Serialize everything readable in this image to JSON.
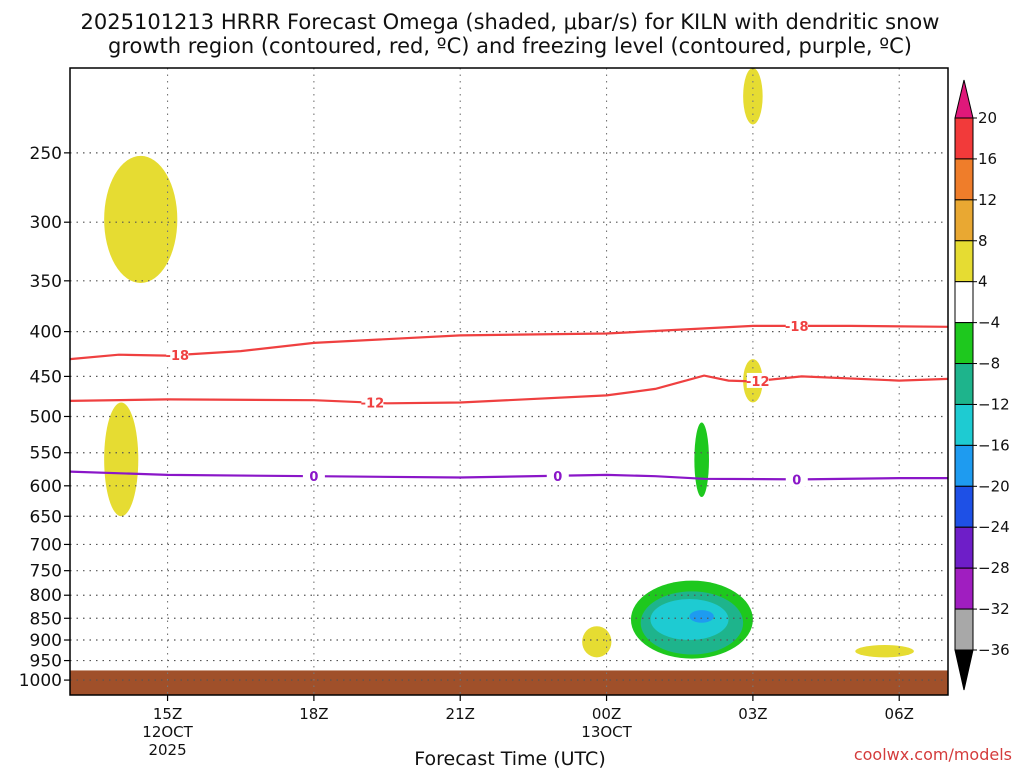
{
  "chart_data": {
    "type": "heatmap",
    "title_line1": "2025101213 HRRR Forecast Omega (shaded, μbar/s) for KILN with dendritic snow",
    "title_line2": "growth region (contoured, red, ºC) and freezing level (contoured, purple, ºC)",
    "xlabel": "Forecast Time (UTC)",
    "ylabel": "",
    "credit": "coolwx.com/models",
    "y_axis": {
      "scale": "pressure",
      "units": "hPa",
      "ticks": [
        250,
        300,
        350,
        400,
        450,
        500,
        550,
        600,
        650,
        700,
        750,
        800,
        850,
        900,
        950,
        1000
      ],
      "range": [
        1000,
        200
      ]
    },
    "x_axis": {
      "ticks": [
        {
          "hour": 15,
          "label": "15Z",
          "sub": [
            "12OCT",
            "2025"
          ]
        },
        {
          "hour": 18,
          "label": "18Z",
          "sub": []
        },
        {
          "hour": 21,
          "label": "21Z",
          "sub": []
        },
        {
          "hour": 24,
          "label": "00Z",
          "sub": [
            "13OCT"
          ]
        },
        {
          "hour": 27,
          "label": "03Z",
          "sub": []
        },
        {
          "hour": 30,
          "label": "06Z",
          "sub": []
        }
      ],
      "range": [
        13,
        31
      ]
    },
    "grid": true,
    "colorbar": {
      "labels": [
        "20",
        "16",
        "12",
        "8",
        "4",
        "−4",
        "−8",
        "−12",
        "−16",
        "−20",
        "−24",
        "−28",
        "−32",
        "−36"
      ],
      "colors": [
        "#e0187a",
        "#f23a3a",
        "#ef7d2a",
        "#e9a832",
        "#e6dc32",
        "#ffffff",
        "#1ec81e",
        "#1eb48c",
        "#1ecbd2",
        "#1e9bf0",
        "#1e50e6",
        "#6e1ec8",
        "#a01ec0",
        "#a8a8a8",
        "#000000"
      ]
    },
    "contours": {
      "dgz_minus18": {
        "label": "-18",
        "color": "#ef4040",
        "points": [
          [
            13,
            430
          ],
          [
            14,
            425
          ],
          [
            15,
            426
          ],
          [
            16.5,
            421
          ],
          [
            18,
            412
          ],
          [
            21,
            404
          ],
          [
            24,
            402
          ],
          [
            27,
            394
          ],
          [
            29,
            394
          ],
          [
            31,
            395
          ]
        ],
        "label_hours": [
          15.2,
          27.9
        ]
      },
      "dgz_minus12": {
        "label": "-12",
        "color": "#ef4040",
        "points": [
          [
            13,
            480
          ],
          [
            15,
            478
          ],
          [
            18,
            479
          ],
          [
            19.5,
            483
          ],
          [
            21,
            482
          ],
          [
            24,
            473
          ],
          [
            25,
            465
          ],
          [
            26,
            449
          ],
          [
            26.5,
            455
          ],
          [
            27,
            456
          ],
          [
            28,
            450
          ],
          [
            30,
            455
          ],
          [
            31,
            453
          ]
        ],
        "label_hours": [
          19.2,
          27.1
        ]
      },
      "freezing_0": {
        "label": "0",
        "color": "#8a16c8",
        "points": [
          [
            13,
            578
          ],
          [
            15,
            583
          ],
          [
            18,
            585
          ],
          [
            21,
            587
          ],
          [
            24,
            583
          ],
          [
            25,
            585
          ],
          [
            26,
            589
          ],
          [
            28,
            590
          ],
          [
            30,
            588
          ],
          [
            31,
            588
          ]
        ],
        "label_hours": [
          18,
          23,
          27.9
        ]
      }
    },
    "shaded_regions": [
      {
        "value_range": [
          4,
          8
        ],
        "color": "#e6dc32",
        "hours": [
          13.7,
          15.2
        ],
        "pressure": [
          252,
          352
        ]
      },
      {
        "value_range": [
          4,
          8
        ],
        "color": "#e6dc32",
        "hours": [
          13.7,
          14.4
        ],
        "pressure": [
          482,
          650
        ]
      },
      {
        "value_range": [
          4,
          8
        ],
        "color": "#e6dc32",
        "hours": [
          26.8,
          27.2
        ],
        "pressure": [
          200,
          232
        ]
      },
      {
        "value_range": [
          4,
          8
        ],
        "color": "#e6dc32",
        "hours": [
          26.8,
          27.2
        ],
        "pressure": [
          430,
          482
        ]
      },
      {
        "value_range": [
          4,
          8
        ],
        "color": "#e6dc32",
        "hours": [
          23.5,
          24.1
        ],
        "pressure": [
          868,
          942
        ]
      },
      {
        "value_range": [
          4,
          8
        ],
        "color": "#e6dc32",
        "hours": [
          29.1,
          30.3
        ],
        "pressure": [
          912,
          942
        ]
      },
      {
        "value_range": [
          -8,
          -4
        ],
        "color": "#1ec81e",
        "hours": [
          25.8,
          26.1
        ],
        "pressure": [
          508,
          618
        ]
      },
      {
        "value_range": [
          -8,
          -4
        ],
        "color": "#1ec81e",
        "hours": [
          24.5,
          27.0
        ],
        "pressure": [
          770,
          945
        ]
      },
      {
        "value_range": [
          -12,
          -8
        ],
        "color": "#1eb48c",
        "hours": [
          24.7,
          26.8
        ],
        "pressure": [
          792,
          935
        ]
      },
      {
        "value_range": [
          -16,
          -12
        ],
        "color": "#1ecbd2",
        "hours": [
          24.9,
          26.5
        ],
        "pressure": [
          808,
          900
        ]
      },
      {
        "value_range": [
          -20,
          -16
        ],
        "color": "#1e9bf0",
        "hours": [
          25.7,
          26.2
        ],
        "pressure": [
          832,
          860
        ]
      }
    ],
    "ground": {
      "color": "#a0502a",
      "pressure_top": 975
    }
  }
}
